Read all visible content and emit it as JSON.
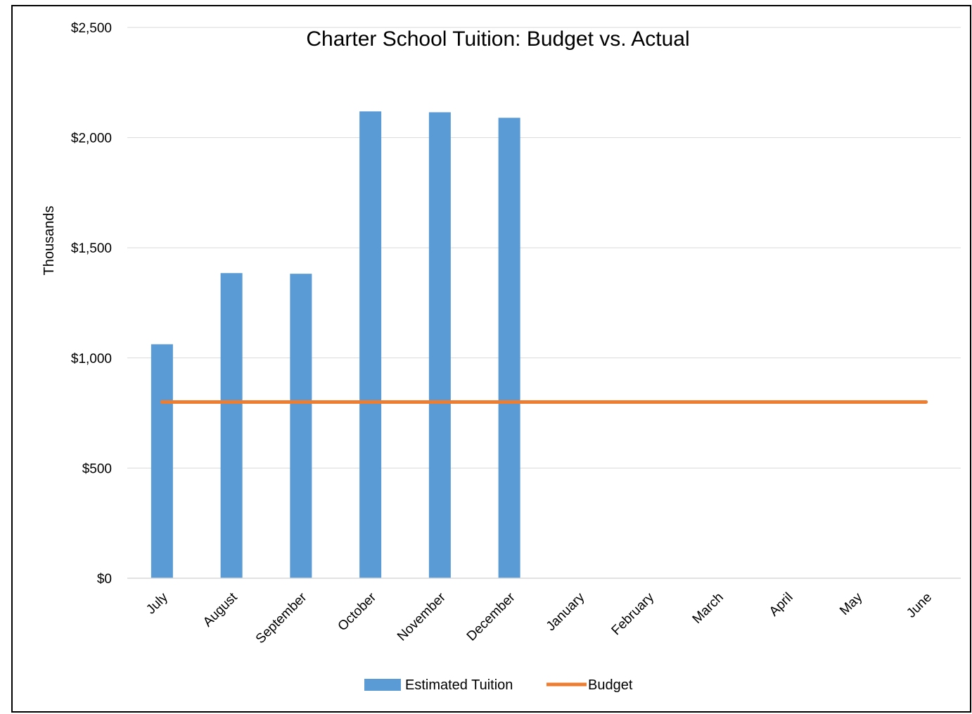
{
  "chart_data": {
    "type": "bar",
    "title": "Charter School Tuition: Budget vs. Actual",
    "xlabel": "",
    "ylabel": "Thousands",
    "categories": [
      "July",
      "August",
      "September",
      "October",
      "November",
      "December",
      "January",
      "February",
      "March",
      "April",
      "May",
      "June"
    ],
    "series": [
      {
        "name": "Estimated Tuition",
        "type": "bar",
        "color": "#5B9BD5",
        "values": [
          1062,
          1385,
          1382,
          2119,
          2115,
          2090,
          null,
          null,
          null,
          null,
          null,
          null
        ]
      },
      {
        "name": "Budget",
        "type": "line",
        "color": "#ED7D31",
        "values": [
          800,
          800,
          800,
          800,
          800,
          800,
          800,
          800,
          800,
          800,
          800,
          800
        ]
      }
    ],
    "ylim": [
      0,
      2500
    ],
    "yticks": [
      0,
      500,
      1000,
      1500,
      2000,
      2500
    ],
    "ytick_labels": [
      "$0",
      "$500",
      "$1,000",
      "$1,500",
      "$2,000",
      "$2,500"
    ],
    "grid": true,
    "legend_position": "bottom"
  }
}
